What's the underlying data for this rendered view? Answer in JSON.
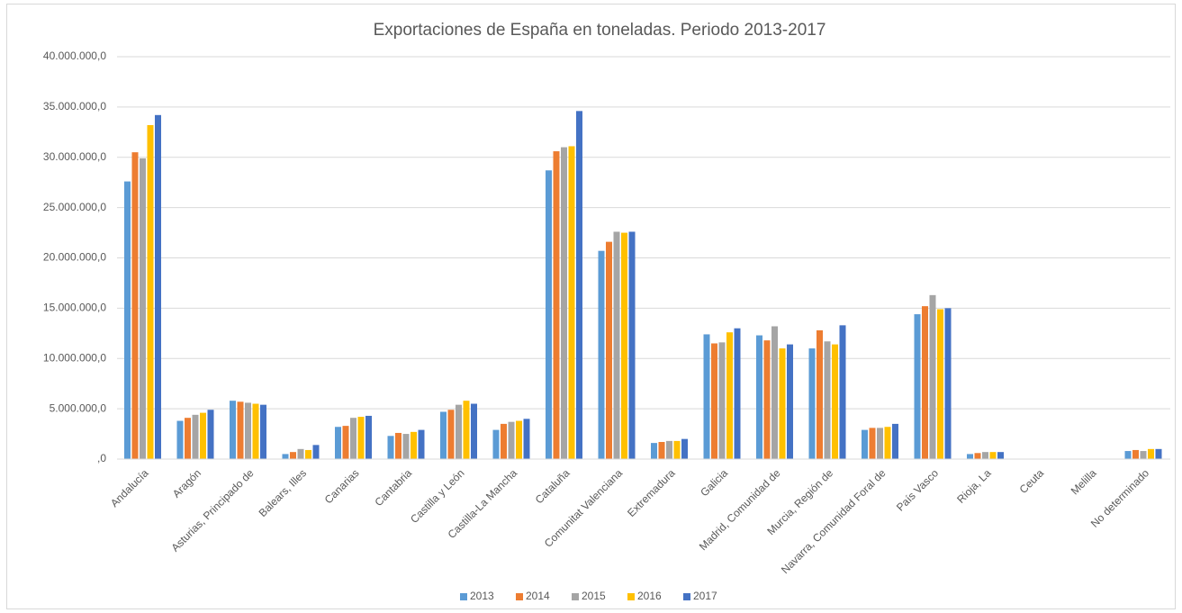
{
  "chart_data": {
    "type": "bar",
    "title": "Exportaciones de España en toneladas. Periodo 2013-2017",
    "categories": [
      "Andalucía",
      "Aragón",
      "Asturias, Principado de",
      "Balears, Illes",
      "Canarias",
      "Cantabria",
      "Castilla y León",
      "Castilla-La Mancha",
      "Cataluña",
      "Comunitat Valenciana",
      "Extremadura",
      "Galicia",
      "Madrid, Comunidad de",
      "Murcia, Región de",
      "Navarra, Comunidad Foral de",
      "País Vasco",
      "Rioja, La",
      "Ceuta",
      "Melilla",
      "No determinado"
    ],
    "series": [
      {
        "name": "2013",
        "color": "#5b9bd5",
        "values": [
          27600000,
          3800000,
          5800000,
          500000,
          3200000,
          2300000,
          4700000,
          2900000,
          28700000,
          20700000,
          1600000,
          12400000,
          12300000,
          11000000,
          2900000,
          14400000,
          500000,
          20000,
          20000,
          800000
        ]
      },
      {
        "name": "2014",
        "color": "#ed7d31",
        "values": [
          30500000,
          4100000,
          5700000,
          700000,
          3300000,
          2600000,
          4900000,
          3500000,
          30600000,
          21600000,
          1700000,
          11500000,
          11800000,
          12800000,
          3100000,
          15200000,
          600000,
          20000,
          20000,
          900000
        ]
      },
      {
        "name": "2015",
        "color": "#a5a5a5",
        "values": [
          29900000,
          4400000,
          5600000,
          1000000,
          4100000,
          2500000,
          5400000,
          3700000,
          31000000,
          22600000,
          1800000,
          11600000,
          13200000,
          11700000,
          3100000,
          16300000,
          700000,
          20000,
          20000,
          800000
        ]
      },
      {
        "name": "2016",
        "color": "#ffc000",
        "values": [
          33200000,
          4600000,
          5500000,
          900000,
          4200000,
          2700000,
          5800000,
          3800000,
          31100000,
          22500000,
          1800000,
          12600000,
          11000000,
          11400000,
          3200000,
          14900000,
          700000,
          20000,
          20000,
          1000000
        ]
      },
      {
        "name": "2017",
        "color": "#4472c4",
        "values": [
          34200000,
          4900000,
          5400000,
          1400000,
          4300000,
          2900000,
          5500000,
          4000000,
          34600000,
          22600000,
          2000000,
          13000000,
          11400000,
          13300000,
          3500000,
          15000000,
          700000,
          20000,
          20000,
          1000000
        ]
      }
    ],
    "ylim": [
      0,
      40000000
    ],
    "yticks": [
      {
        "value": 0,
        "label": ",0"
      },
      {
        "value": 5000000,
        "label": "5.000.000,0"
      },
      {
        "value": 10000000,
        "label": "10.000.000,0"
      },
      {
        "value": 15000000,
        "label": "15.000.000,0"
      },
      {
        "value": 20000000,
        "label": "20.000.000,0"
      },
      {
        "value": 25000000,
        "label": "25.000.000,0"
      },
      {
        "value": 30000000,
        "label": "30.000.000,0"
      },
      {
        "value": 35000000,
        "label": "35.000.000,0"
      },
      {
        "value": 40000000,
        "label": "40.000.000,0"
      }
    ],
    "grid": true,
    "legend": "bottom"
  }
}
